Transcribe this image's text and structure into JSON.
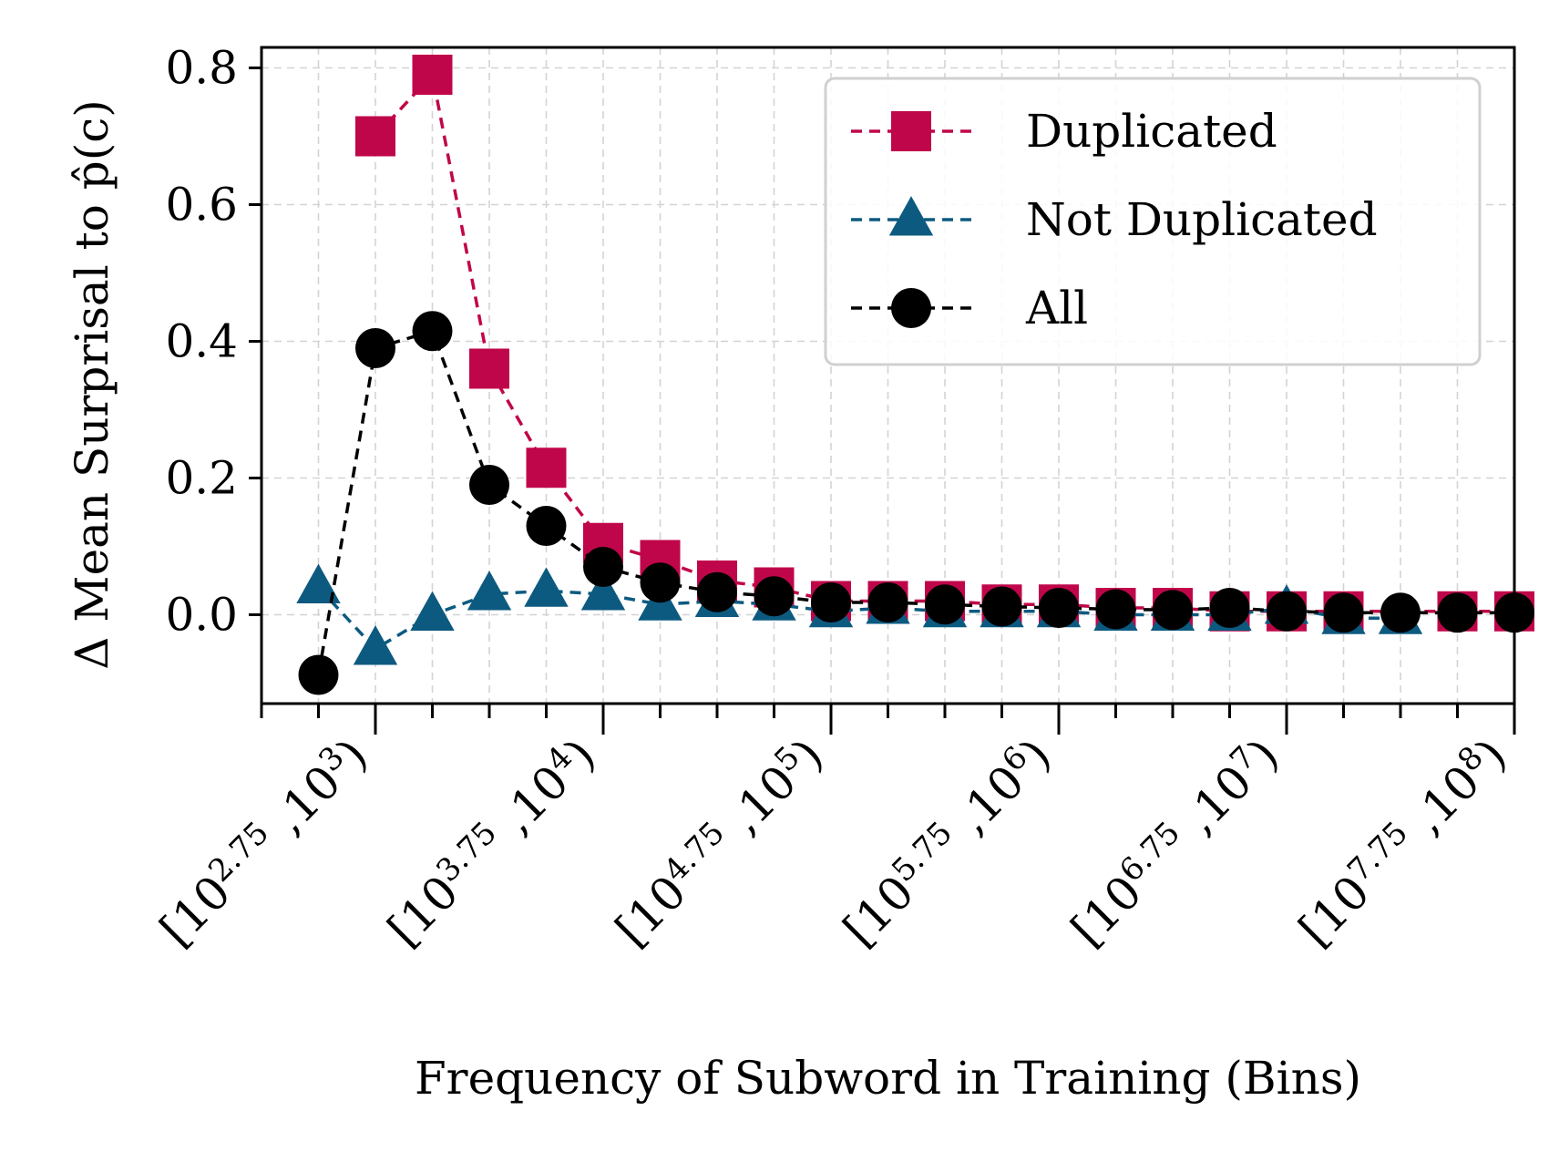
{
  "chart_data": {
    "type": "line",
    "xlabel": "Frequency of Subword in Training (Bins)",
    "ylabel": "Δ Mean Surprisal to p̂(c)",
    "x_bins": [
      2.5,
      2.75,
      3.0,
      3.25,
      3.5,
      3.75,
      4.0,
      4.25,
      4.5,
      4.75,
      5.0,
      5.25,
      5.5,
      5.75,
      6.0,
      6.25,
      6.5,
      6.75,
      7.0,
      7.25,
      7.5,
      7.75
    ],
    "x_tick_labels": [
      {
        "bin": 2.75,
        "base": "[10",
        "exp1": "2.75",
        "mid": " ,10",
        "exp2": "3",
        "end": ")"
      },
      {
        "bin": 3.75,
        "base": "[10",
        "exp1": "3.75",
        "mid": " ,10",
        "exp2": "4",
        "end": ")"
      },
      {
        "bin": 4.75,
        "base": "[10",
        "exp1": "4.75",
        "mid": " ,10",
        "exp2": "5",
        "end": ")"
      },
      {
        "bin": 5.75,
        "base": "[10",
        "exp1": "5.75",
        "mid": " ,10",
        "exp2": "6",
        "end": ")"
      },
      {
        "bin": 6.75,
        "base": "[10",
        "exp1": "6.75",
        "mid": " ,10",
        "exp2": "7",
        "end": ")"
      },
      {
        "bin": 7.75,
        "base": "[10",
        "exp1": "7.75",
        "mid": " ,10",
        "exp2": "8",
        "end": ")"
      }
    ],
    "xlim": [
      2.25,
      7.75
    ],
    "ylim": [
      -0.13,
      0.83
    ],
    "yticks": [
      0.0,
      0.2,
      0.4,
      0.6,
      0.8
    ],
    "ytick_labels": [
      "0.0",
      "0.2",
      "0.4",
      "0.6",
      "0.8"
    ],
    "grid": true,
    "legend_position": "top-right",
    "series": [
      {
        "name": "Duplicated",
        "color": "#c0064a",
        "marker": "square",
        "x": [
          2.75,
          3.0,
          3.25,
          3.5,
          3.75,
          4.0,
          4.25,
          4.5,
          4.75,
          5.0,
          5.25,
          5.5,
          5.75,
          6.0,
          6.25,
          6.5,
          6.75,
          7.0,
          7.5,
          7.75
        ],
        "y": [
          0.7,
          0.79,
          0.36,
          0.215,
          0.105,
          0.08,
          0.05,
          0.04,
          0.02,
          0.02,
          0.02,
          0.015,
          0.015,
          0.01,
          0.01,
          0.005,
          0.005,
          0.005,
          0.005,
          0.005
        ]
      },
      {
        "name": "Not Duplicated",
        "color": "#0d5a80",
        "marker": "triangle",
        "x": [
          2.5,
          2.75,
          3.0,
          3.25,
          3.5,
          3.75,
          4.0,
          4.25,
          4.5,
          4.75,
          5.0,
          5.25,
          5.5,
          5.75,
          6.0,
          6.25,
          6.5,
          6.75,
          7.0,
          7.25
        ],
        "y": [
          0.04,
          -0.05,
          0.0,
          0.03,
          0.035,
          0.03,
          0.015,
          0.02,
          0.015,
          0.005,
          0.01,
          0.005,
          0.005,
          0.005,
          0.0,
          0.0,
          0.0,
          0.01,
          -0.005,
          -0.005
        ]
      },
      {
        "name": "All",
        "color": "#000000",
        "marker": "circle",
        "x": [
          2.5,
          2.75,
          3.0,
          3.25,
          3.5,
          3.75,
          4.0,
          4.25,
          4.5,
          4.75,
          5.0,
          5.25,
          5.5,
          5.75,
          6.0,
          6.25,
          6.5,
          6.75,
          7.0,
          7.25,
          7.5,
          7.75
        ],
        "y": [
          -0.088,
          0.39,
          0.415,
          0.19,
          0.13,
          0.07,
          0.047,
          0.033,
          0.027,
          0.018,
          0.018,
          0.015,
          0.012,
          0.01,
          0.008,
          0.007,
          0.01,
          0.005,
          0.003,
          0.003,
          0.003,
          0.003
        ]
      }
    ]
  }
}
